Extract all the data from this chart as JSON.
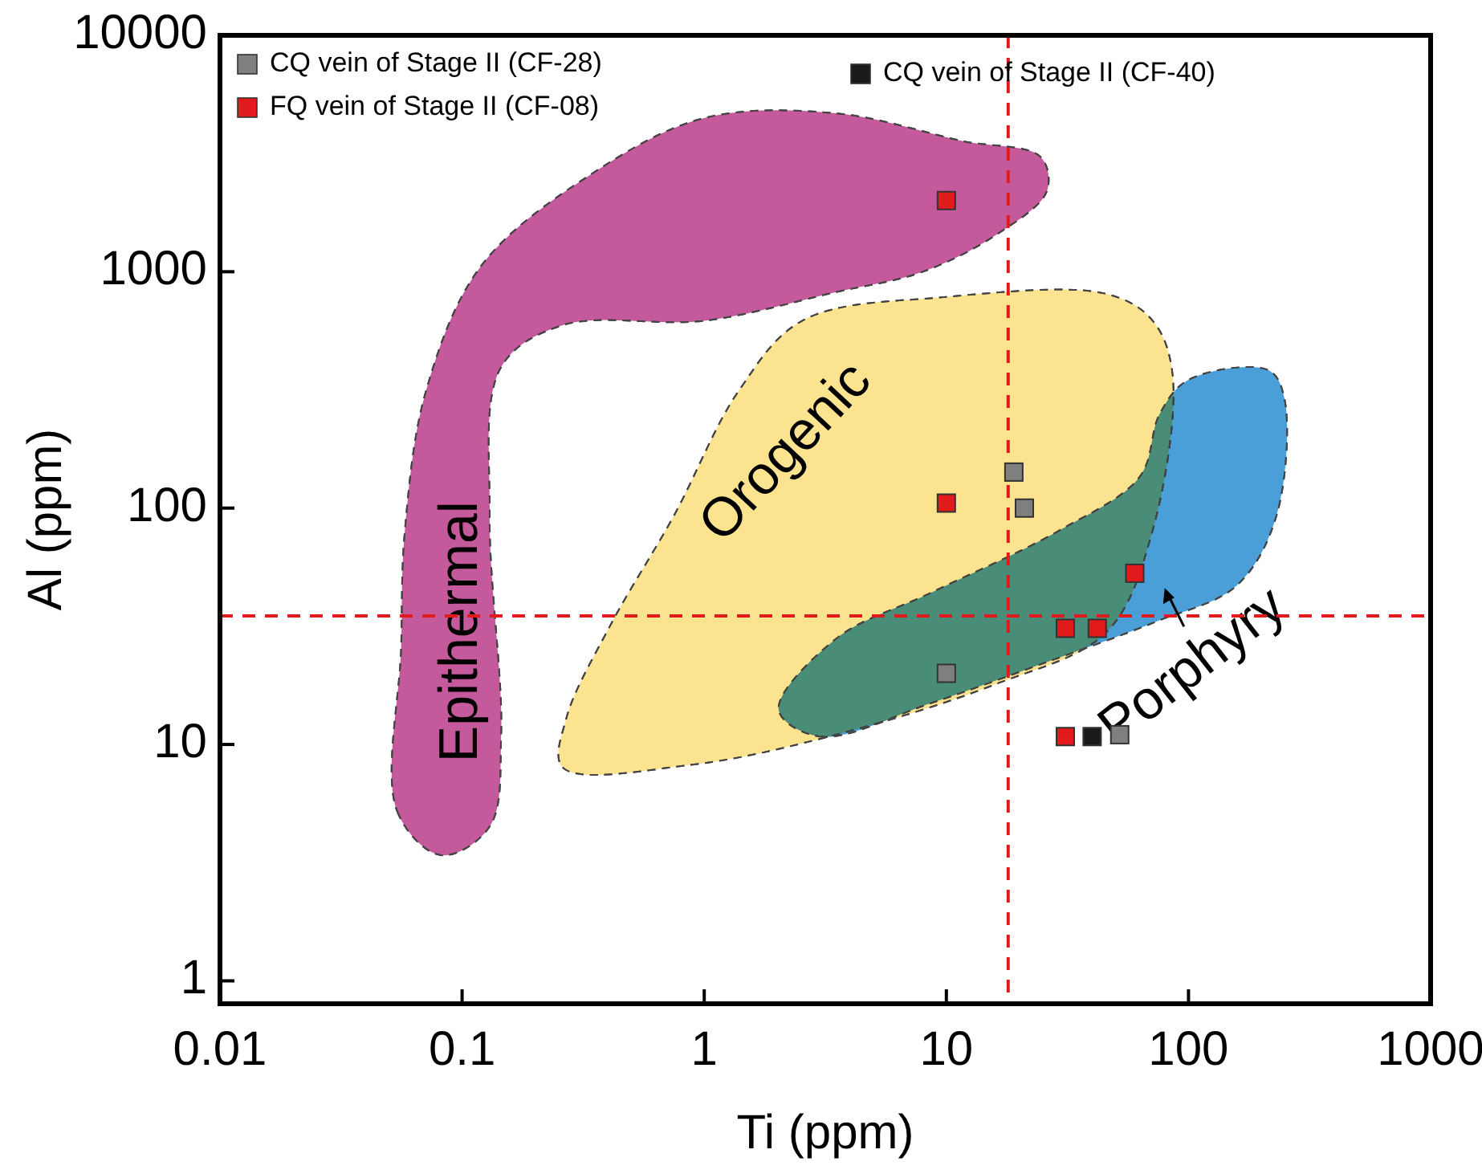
{
  "chart_data": {
    "type": "scatter",
    "xlabel": "Ti (ppm)",
    "ylabel": "Al (ppm)",
    "log": "xy",
    "xlim": [
      0.01,
      1000
    ],
    "xticks": [
      0.01,
      0.1,
      1,
      10,
      100,
      1000
    ],
    "ylim": [
      0.8,
      10000
    ],
    "yticks": [
      1,
      10,
      100,
      1000,
      10000
    ],
    "grid": false,
    "legend": "top left",
    "series": [
      {
        "name": "Epithermal",
        "type": "area",
        "color": "#c45a9b",
        "x": [
          0.056,
          0.054,
          0.082,
          0.13,
          0.145,
          0.13,
          0.145,
          0.26,
          1.0,
          3.5,
          8.0,
          16,
          26,
          24.5,
          11.7,
          3.5,
          1.0,
          0.35,
          0.12,
          0.071,
          0.058
        ],
        "values": [
          25.6,
          5.2,
          3.4,
          4.5,
          11,
          93,
          395,
          594,
          620,
          820,
          1000,
          1430,
          2190,
          3060,
          3570,
          4680,
          4470,
          2630,
          1060,
          314,
          80
        ]
      },
      {
        "name": "Orogenic",
        "type": "area",
        "color": "#fce38f",
        "x": [
          0.26,
          0.88,
          3.5,
          16,
          46,
          71,
          86,
          71,
          46,
          10,
          2.55,
          1.39,
          0.75,
          0.41,
          0.27
        ],
        "values": [
          8.0,
          8.2,
          11,
          18,
          30,
          80,
          366,
          622,
          805,
          782,
          622,
          314,
          93,
          32,
          13
        ]
      },
      {
        "name": "Porphyry",
        "type": "area",
        "color": "#4a9fd8",
        "x": [
          2.03,
          3.0,
          8.7,
          25,
          73,
          158,
          231,
          249,
          214,
          100,
          76,
          63,
          29,
          8.7,
          3.5
        ],
        "values": [
          14,
          10.8,
          15,
          22,
          33,
          47,
          93,
          291,
          383,
          349,
          250,
          136,
          80,
          44,
          28
        ]
      },
      {
        "name": "CQ vein of Stage II (CF-28)",
        "marker": "square",
        "color": "#7f7f7f",
        "x": [
          19,
          21,
          10,
          52
        ],
        "values": [
          142,
          100,
          20,
          11
        ]
      },
      {
        "name": "FQ vein of Stage II (CF-08)",
        "marker": "square",
        "color": "#e31a1c",
        "x": [
          10,
          10,
          60,
          31,
          42,
          31
        ],
        "values": [
          2000,
          105,
          53,
          31,
          31,
          10.8
        ]
      },
      {
        "name": "CQ vein of Stage II (CF-40)",
        "marker": "square",
        "color": "#1a1a1a",
        "x": [
          40
        ],
        "values": [
          10.8
        ]
      }
    ],
    "ref_lines": [
      {
        "axis": "x",
        "value": 18,
        "color": "#e31a1c",
        "line_style": "dashed"
      },
      {
        "axis": "y",
        "value": 35,
        "color": "#e31a1c",
        "line_style": "dashed"
      }
    ]
  }
}
